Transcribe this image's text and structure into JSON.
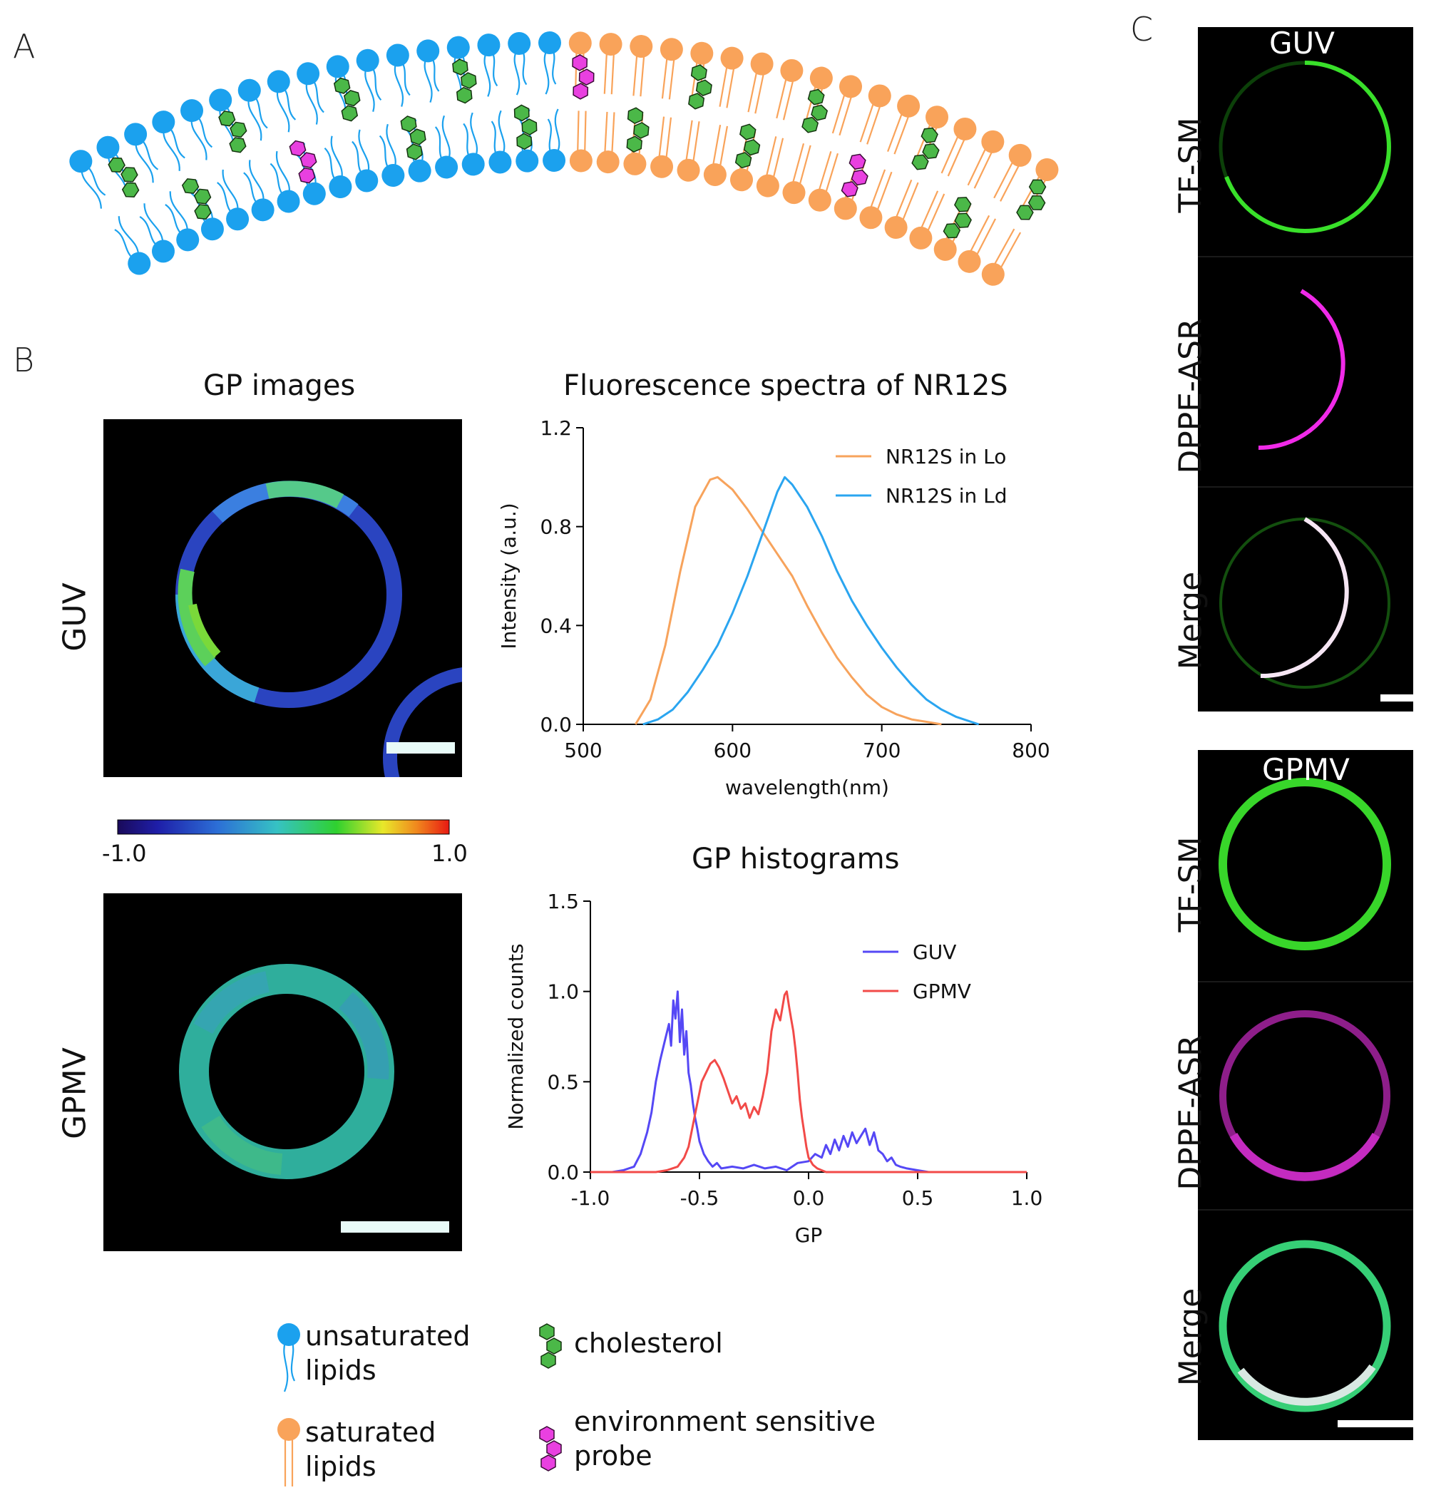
{
  "panel_labels": {
    "a": "A",
    "b": "B",
    "c": "C"
  },
  "panel_b": {
    "gp_images_title": "GP images",
    "guv_label": "GUV",
    "gpmv_label": "GPMV",
    "colorbar_min": "-1.0",
    "colorbar_max": "1.0"
  },
  "panel_c": {
    "guv_title": "GUV",
    "gpmv_title": "GPMV",
    "row_labels": [
      "TF-SM",
      "DPPE-ASR",
      "Merge"
    ]
  },
  "legend": {
    "unsaturated": [
      "unsaturated",
      "lipids"
    ],
    "saturated": [
      "saturated",
      "lipids"
    ],
    "cholesterol": "cholesterol",
    "probe": [
      "environment sensitive",
      "probe"
    ]
  },
  "colors": {
    "unsaturated": "#1ba1ee",
    "saturated": "#f9a35a",
    "cholesterol": "#4bb848",
    "probe": "#e940e0",
    "lo_line": "#f7a35c",
    "ld_line": "#2aa5f0",
    "guv_line": "#5548f5",
    "gpmv_line": "#f24a48"
  },
  "chart_data": [
    {
      "type": "line",
      "title": "Fluorescence spectra of NR12S",
      "xlabel": "wavelength(nm)",
      "ylabel": "Intensity (a.u.)",
      "xlim": [
        500,
        800
      ],
      "ylim": [
        0,
        1.2
      ],
      "xticks": [
        "500",
        "600",
        "700",
        "800"
      ],
      "yticks": [
        "0.0",
        "0.4",
        "0.8",
        "1.2"
      ],
      "legend_position": "top-right",
      "series": [
        {
          "name": "NR12S in Lo",
          "x": [
            535,
            545,
            555,
            565,
            575,
            585,
            590,
            600,
            610,
            620,
            630,
            640,
            650,
            660,
            670,
            680,
            690,
            700,
            710,
            720,
            730,
            740
          ],
          "y": [
            0.0,
            0.1,
            0.32,
            0.62,
            0.88,
            0.99,
            1.0,
            0.95,
            0.87,
            0.78,
            0.69,
            0.6,
            0.48,
            0.37,
            0.27,
            0.19,
            0.12,
            0.07,
            0.04,
            0.02,
            0.01,
            0.0
          ]
        },
        {
          "name": "NR12S in Ld",
          "x": [
            540,
            550,
            560,
            570,
            580,
            590,
            600,
            610,
            620,
            630,
            635,
            640,
            650,
            660,
            670,
            680,
            690,
            700,
            710,
            720,
            730,
            740,
            750,
            765
          ],
          "y": [
            0.0,
            0.02,
            0.06,
            0.13,
            0.22,
            0.32,
            0.45,
            0.6,
            0.77,
            0.94,
            1.0,
            0.97,
            0.88,
            0.76,
            0.62,
            0.5,
            0.4,
            0.31,
            0.23,
            0.16,
            0.1,
            0.06,
            0.03,
            0.0
          ]
        }
      ]
    },
    {
      "type": "line",
      "title": "GP histograms",
      "xlabel": "GP",
      "ylabel": "Normalized counts",
      "xlim": [
        -1.0,
        1.0
      ],
      "ylim": [
        0,
        1.5
      ],
      "xticks": [
        "-1.0",
        "-0.5",
        "0.0",
        "0.5",
        "1.0"
      ],
      "yticks": [
        "0.0",
        "0.5",
        "1.0",
        "1.5"
      ],
      "legend_position": "top-right",
      "series": [
        {
          "name": "GUV",
          "x": [
            -1.0,
            -0.9,
            -0.85,
            -0.8,
            -0.77,
            -0.74,
            -0.72,
            -0.7,
            -0.68,
            -0.66,
            -0.64,
            -0.63,
            -0.62,
            -0.61,
            -0.6,
            -0.59,
            -0.58,
            -0.57,
            -0.56,
            -0.55,
            -0.54,
            -0.53,
            -0.52,
            -0.51,
            -0.5,
            -0.48,
            -0.46,
            -0.44,
            -0.42,
            -0.4,
            -0.35,
            -0.3,
            -0.25,
            -0.2,
            -0.15,
            -0.1,
            -0.05,
            0.0,
            0.03,
            0.06,
            0.08,
            0.1,
            0.12,
            0.14,
            0.16,
            0.18,
            0.2,
            0.22,
            0.24,
            0.26,
            0.28,
            0.3,
            0.32,
            0.34,
            0.36,
            0.38,
            0.4,
            0.42,
            0.45,
            0.5,
            0.55,
            1.0
          ],
          "y": [
            0.0,
            0.0,
            0.01,
            0.03,
            0.1,
            0.22,
            0.33,
            0.5,
            0.62,
            0.72,
            0.82,
            0.7,
            0.95,
            0.85,
            1.0,
            0.72,
            0.9,
            0.65,
            0.78,
            0.55,
            0.48,
            0.38,
            0.3,
            0.24,
            0.17,
            0.1,
            0.06,
            0.03,
            0.05,
            0.02,
            0.03,
            0.02,
            0.04,
            0.02,
            0.03,
            0.01,
            0.05,
            0.06,
            0.1,
            0.08,
            0.15,
            0.1,
            0.18,
            0.12,
            0.2,
            0.14,
            0.22,
            0.16,
            0.2,
            0.24,
            0.15,
            0.22,
            0.12,
            0.1,
            0.06,
            0.08,
            0.04,
            0.03,
            0.02,
            0.01,
            0.0,
            0.0
          ]
        },
        {
          "name": "GPMV",
          "x": [
            -1.0,
            -0.7,
            -0.65,
            -0.6,
            -0.57,
            -0.55,
            -0.53,
            -0.51,
            -0.49,
            -0.47,
            -0.45,
            -0.43,
            -0.41,
            -0.39,
            -0.37,
            -0.35,
            -0.33,
            -0.31,
            -0.29,
            -0.27,
            -0.25,
            -0.23,
            -0.21,
            -0.19,
            -0.17,
            -0.15,
            -0.13,
            -0.11,
            -0.1,
            -0.09,
            -0.08,
            -0.07,
            -0.06,
            -0.05,
            -0.04,
            -0.03,
            -0.02,
            -0.01,
            0.0,
            0.02,
            0.04,
            0.06,
            0.08,
            0.1,
            1.0
          ],
          "y": [
            0.0,
            0.0,
            0.01,
            0.03,
            0.08,
            0.14,
            0.26,
            0.38,
            0.5,
            0.55,
            0.6,
            0.62,
            0.58,
            0.52,
            0.45,
            0.38,
            0.42,
            0.35,
            0.38,
            0.3,
            0.36,
            0.32,
            0.42,
            0.55,
            0.78,
            0.9,
            0.84,
            0.98,
            1.0,
            0.92,
            0.85,
            0.78,
            0.68,
            0.55,
            0.4,
            0.3,
            0.22,
            0.14,
            0.08,
            0.04,
            0.02,
            0.01,
            0.0,
            0.0,
            0.0
          ]
        }
      ]
    }
  ]
}
